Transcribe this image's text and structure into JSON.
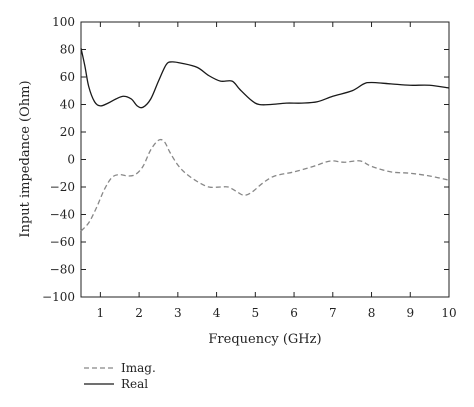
{
  "chart_data": {
    "type": "line",
    "title": "",
    "xlabel": "Frequency (GHz)",
    "ylabel": "Input impedance (Ohm)",
    "xlim": [
      0.5,
      10
    ],
    "ylim": [
      -100,
      100
    ],
    "x_ticks": [
      1,
      2,
      3,
      4,
      5,
      6,
      7,
      8,
      9,
      10
    ],
    "y_ticks": [
      100,
      80,
      60,
      40,
      20,
      0,
      -20,
      -40,
      -60,
      -80,
      -100
    ],
    "grid": false,
    "legend_position": "bottom-left",
    "series": [
      {
        "name": "Imag.",
        "style": "dashed",
        "color": "#888888",
        "points": [
          [
            0.5,
            -52
          ],
          [
            0.7,
            -46
          ],
          [
            0.9,
            -35
          ],
          [
            1.1,
            -22
          ],
          [
            1.3,
            -13
          ],
          [
            1.5,
            -11
          ],
          [
            1.7,
            -12
          ],
          [
            1.9,
            -11
          ],
          [
            2.1,
            -5
          ],
          [
            2.3,
            7
          ],
          [
            2.5,
            14
          ],
          [
            2.65,
            13
          ],
          [
            2.8,
            5
          ],
          [
            3.0,
            -4
          ],
          [
            3.2,
            -10
          ],
          [
            3.5,
            -16
          ],
          [
            3.8,
            -20
          ],
          [
            4.1,
            -20
          ],
          [
            4.3,
            -20
          ],
          [
            4.5,
            -23
          ],
          [
            4.7,
            -26
          ],
          [
            4.9,
            -24
          ],
          [
            5.2,
            -17
          ],
          [
            5.5,
            -12
          ],
          [
            6.0,
            -9
          ],
          [
            6.5,
            -5
          ],
          [
            6.8,
            -2
          ],
          [
            7.0,
            -1
          ],
          [
            7.3,
            -2
          ],
          [
            7.7,
            -1
          ],
          [
            8.0,
            -5
          ],
          [
            8.5,
            -9
          ],
          [
            9.0,
            -10
          ],
          [
            9.5,
            -12
          ],
          [
            10.0,
            -15
          ]
        ]
      },
      {
        "name": "Real",
        "style": "solid",
        "color": "#1a1a1a",
        "points": [
          [
            0.5,
            81
          ],
          [
            0.6,
            68
          ],
          [
            0.7,
            53
          ],
          [
            0.85,
            42
          ],
          [
            1.0,
            39
          ],
          [
            1.2,
            41
          ],
          [
            1.4,
            44
          ],
          [
            1.6,
            46
          ],
          [
            1.8,
            44
          ],
          [
            1.95,
            39
          ],
          [
            2.1,
            38
          ],
          [
            2.3,
            44
          ],
          [
            2.5,
            57
          ],
          [
            2.7,
            69
          ],
          [
            2.85,
            71
          ],
          [
            3.1,
            70
          ],
          [
            3.5,
            67
          ],
          [
            3.8,
            61
          ],
          [
            4.1,
            57
          ],
          [
            4.4,
            57
          ],
          [
            4.6,
            51
          ],
          [
            4.9,
            43
          ],
          [
            5.1,
            40
          ],
          [
            5.4,
            40
          ],
          [
            5.8,
            41
          ],
          [
            6.2,
            41
          ],
          [
            6.6,
            42
          ],
          [
            7.0,
            46
          ],
          [
            7.5,
            50
          ],
          [
            7.8,
            55
          ],
          [
            8.0,
            56
          ],
          [
            8.5,
            55
          ],
          [
            9.0,
            54
          ],
          [
            9.5,
            54
          ],
          [
            10.0,
            52
          ]
        ]
      }
    ]
  }
}
